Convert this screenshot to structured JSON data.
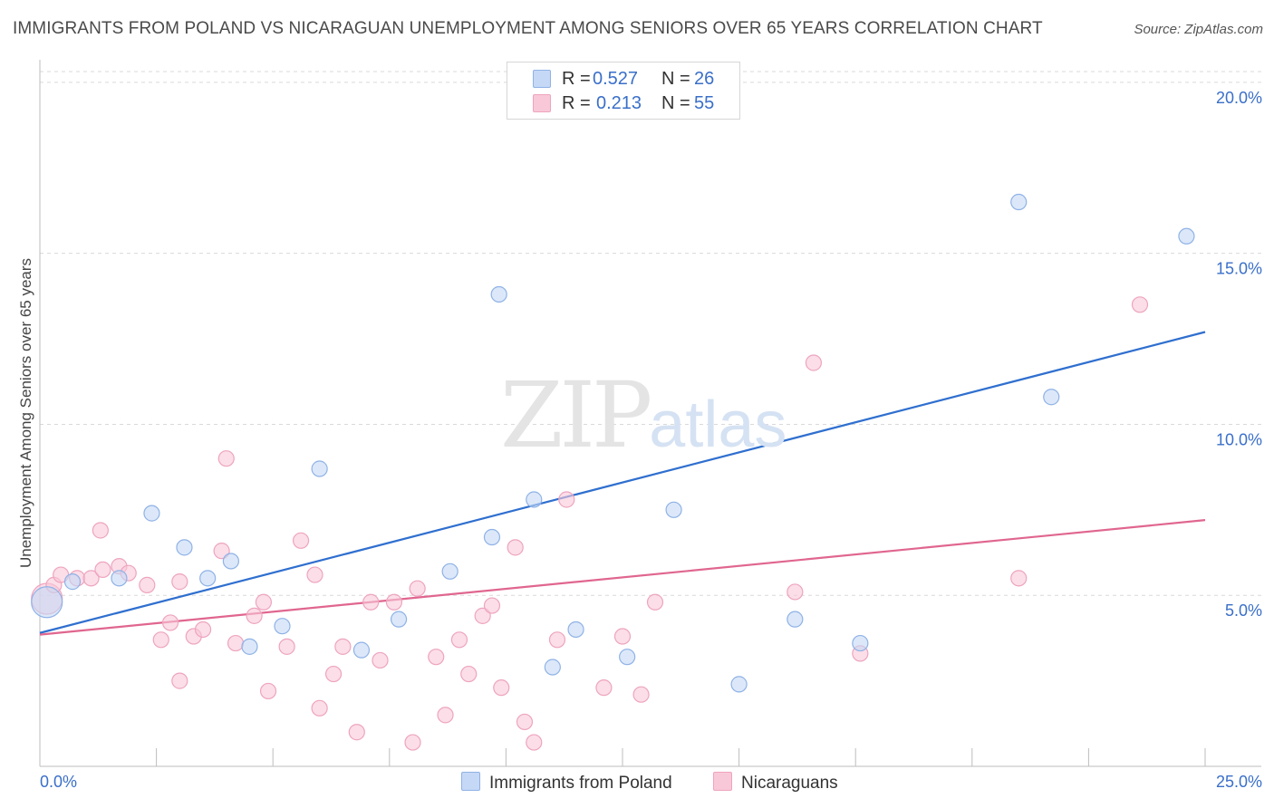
{
  "title": "IMMIGRANTS FROM POLAND VS NICARAGUAN UNEMPLOYMENT AMONG SENIORS OVER 65 YEARS CORRELATION CHART",
  "source": "Source: ZipAtlas.com",
  "watermark": {
    "zip": "ZIP",
    "atlas": "atlas"
  },
  "legend": {
    "rows": [
      {
        "r_label": "R =",
        "r_value": "0.527",
        "n_label": "N =",
        "n_value": "26"
      },
      {
        "r_label": "R =",
        "r_value": "0.213",
        "n_label": "N =",
        "n_value": "55"
      }
    ]
  },
  "bottom_legend": {
    "series_a": "Immigrants from Poland",
    "series_b": "Nicaraguans"
  },
  "colors": {
    "blue_fill": "#c5d8f5",
    "blue_stroke": "#8fb2e6",
    "blue_line": "#2f6fcf",
    "pink_fill": "#f8c8d8",
    "pink_stroke": "#eea4bf",
    "pink_line": "#e0668f",
    "tick_text": "#3a6fc9",
    "grid": "#d9d9d9"
  },
  "chart_data": {
    "type": "scatter",
    "title": "IMMIGRANTS FROM POLAND VS NICARAGUAN UNEMPLOYMENT AMONG SENIORS OVER 65 YEARS CORRELATION CHART",
    "xlabel": "",
    "ylabel": "Unemployment Among Seniors over 65 years",
    "xlim": [
      0,
      25
    ],
    "ylim": [
      0,
      20.5
    ],
    "x_tick_labels": [
      "0.0%",
      "25.0%"
    ],
    "y_ticks": [
      5,
      10,
      15,
      20
    ],
    "y_tick_labels": [
      "5.0%",
      "10.0%",
      "15.0%",
      "20.0%"
    ],
    "series": [
      {
        "name": "Immigrants from Poland",
        "r": 0.527,
        "n": 26,
        "trend": {
          "x": [
            0,
            25
          ],
          "y": [
            3.9,
            12.7
          ]
        },
        "points": [
          {
            "x": 0.15,
            "y": 4.8,
            "big": true
          },
          {
            "x": 0.7,
            "y": 5.4
          },
          {
            "x": 1.7,
            "y": 5.5
          },
          {
            "x": 2.4,
            "y": 7.4
          },
          {
            "x": 3.1,
            "y": 6.4
          },
          {
            "x": 3.6,
            "y": 5.5
          },
          {
            "x": 4.1,
            "y": 6.0
          },
          {
            "x": 4.5,
            "y": 3.5
          },
          {
            "x": 5.2,
            "y": 4.1
          },
          {
            "x": 6.0,
            "y": 8.7
          },
          {
            "x": 6.9,
            "y": 3.4
          },
          {
            "x": 7.7,
            "y": 4.3
          },
          {
            "x": 8.8,
            "y": 5.7
          },
          {
            "x": 9.7,
            "y": 6.7
          },
          {
            "x": 9.85,
            "y": 13.8
          },
          {
            "x": 10.6,
            "y": 7.8
          },
          {
            "x": 11.0,
            "y": 2.9
          },
          {
            "x": 11.5,
            "y": 4.0
          },
          {
            "x": 12.6,
            "y": 3.2
          },
          {
            "x": 13.6,
            "y": 7.5
          },
          {
            "x": 15.0,
            "y": 2.4
          },
          {
            "x": 16.2,
            "y": 4.3
          },
          {
            "x": 17.6,
            "y": 3.6
          },
          {
            "x": 21.0,
            "y": 16.5
          },
          {
            "x": 21.7,
            "y": 10.8
          },
          {
            "x": 24.6,
            "y": 15.5
          }
        ]
      },
      {
        "name": "Nicaraguans",
        "r": 0.213,
        "n": 55,
        "trend": {
          "x": [
            0,
            25
          ],
          "y": [
            3.85,
            7.2
          ]
        },
        "points": [
          {
            "x": 0.15,
            "y": 4.9,
            "big": true
          },
          {
            "x": 0.3,
            "y": 5.3
          },
          {
            "x": 0.45,
            "y": 5.6
          },
          {
            "x": 0.8,
            "y": 5.5
          },
          {
            "x": 1.1,
            "y": 5.5
          },
          {
            "x": 1.35,
            "y": 5.75
          },
          {
            "x": 1.3,
            "y": 6.9
          },
          {
            "x": 1.7,
            "y": 5.85
          },
          {
            "x": 1.9,
            "y": 5.65
          },
          {
            "x": 2.3,
            "y": 5.3
          },
          {
            "x": 2.6,
            "y": 3.7
          },
          {
            "x": 2.8,
            "y": 4.2
          },
          {
            "x": 3.0,
            "y": 2.5
          },
          {
            "x": 3.0,
            "y": 5.4
          },
          {
            "x": 3.3,
            "y": 3.8
          },
          {
            "x": 3.5,
            "y": 4.0
          },
          {
            "x": 3.9,
            "y": 6.3
          },
          {
            "x": 4.0,
            "y": 9.0
          },
          {
            "x": 4.2,
            "y": 3.6
          },
          {
            "x": 4.6,
            "y": 4.4
          },
          {
            "x": 4.8,
            "y": 4.8
          },
          {
            "x": 4.9,
            "y": 2.2
          },
          {
            "x": 5.3,
            "y": 3.5
          },
          {
            "x": 5.6,
            "y": 6.6
          },
          {
            "x": 5.9,
            "y": 5.6
          },
          {
            "x": 6.0,
            "y": 1.7
          },
          {
            "x": 6.3,
            "y": 2.7
          },
          {
            "x": 6.5,
            "y": 3.5
          },
          {
            "x": 6.8,
            "y": 1.0
          },
          {
            "x": 7.1,
            "y": 4.8
          },
          {
            "x": 7.3,
            "y": 3.1
          },
          {
            "x": 7.6,
            "y": 4.8
          },
          {
            "x": 8.0,
            "y": 0.7
          },
          {
            "x": 8.1,
            "y": 5.2
          },
          {
            "x": 8.5,
            "y": 3.2
          },
          {
            "x": 8.7,
            "y": 1.5
          },
          {
            "x": 9.0,
            "y": 3.7
          },
          {
            "x": 9.2,
            "y": 2.7
          },
          {
            "x": 9.5,
            "y": 4.4
          },
          {
            "x": 9.7,
            "y": 4.7
          },
          {
            "x": 9.9,
            "y": 2.3
          },
          {
            "x": 10.2,
            "y": 6.4
          },
          {
            "x": 10.4,
            "y": 1.3
          },
          {
            "x": 10.6,
            "y": 0.7
          },
          {
            "x": 11.1,
            "y": 3.7
          },
          {
            "x": 11.3,
            "y": 7.8
          },
          {
            "x": 12.1,
            "y": 2.3
          },
          {
            "x": 12.5,
            "y": 3.8
          },
          {
            "x": 12.9,
            "y": 2.1
          },
          {
            "x": 13.2,
            "y": 4.8
          },
          {
            "x": 16.2,
            "y": 5.1
          },
          {
            "x": 16.6,
            "y": 11.8
          },
          {
            "x": 17.6,
            "y": 3.3
          },
          {
            "x": 21.0,
            "y": 5.5
          },
          {
            "x": 23.6,
            "y": 13.5
          }
        ]
      }
    ]
  }
}
